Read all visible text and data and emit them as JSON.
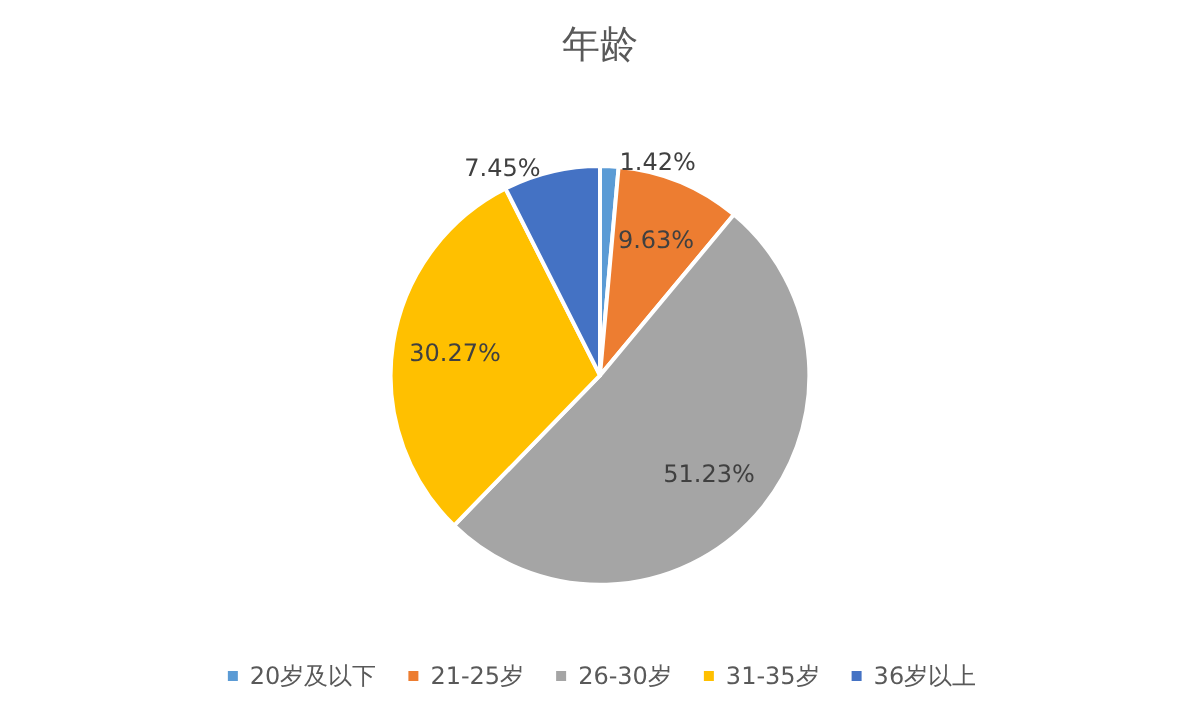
{
  "chart_data": {
    "type": "pie",
    "title": "年龄",
    "categories": [
      "20岁及以下",
      "21-25岁",
      "26-30岁",
      "31-35岁",
      "36岁以上"
    ],
    "values": [
      1.42,
      9.63,
      51.23,
      30.27,
      7.45
    ],
    "colors": [
      "#5b9bd5",
      "#ed7d31",
      "#a5a5a5",
      "#ffc000",
      "#4472c4"
    ],
    "value_labels": [
      "1.42%",
      "9.63%",
      "51.23%",
      "30.27%",
      "7.45%"
    ],
    "legend": "bottom"
  }
}
